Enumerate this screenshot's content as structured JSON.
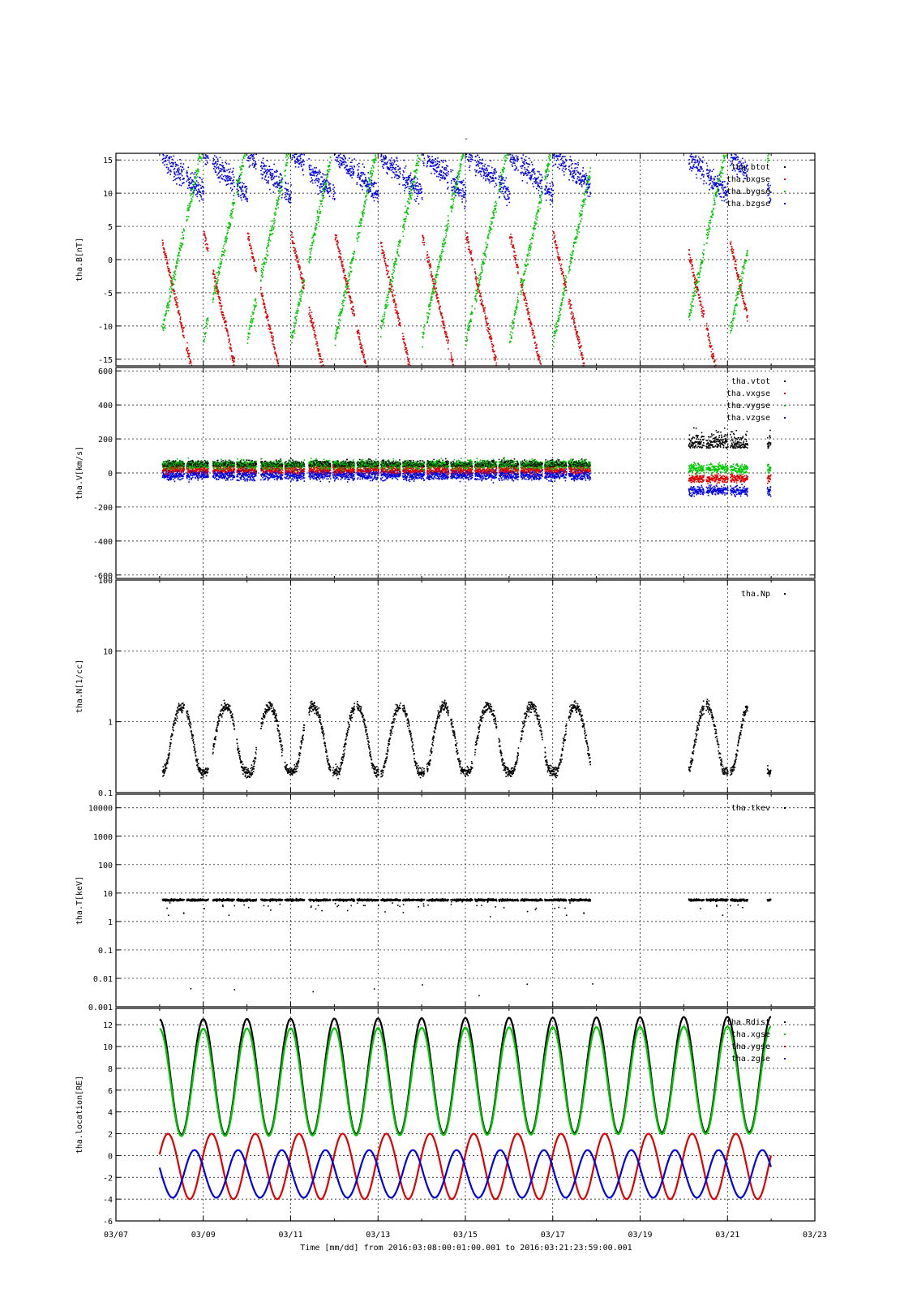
{
  "figure": {
    "title": "-",
    "xlabel": "Time [mm/dd]  from 2016:03:08:00:01:00.001  to  2016:03:21:23:59:00.001",
    "x_tick_labels": [
      "03/07",
      "03/09",
      "03/11",
      "03/13",
      "03/15",
      "03/17",
      "03/19",
      "03/21",
      "03/23"
    ]
  },
  "colors": {
    "black": "#000000",
    "red": "#e00000",
    "green": "#00c800",
    "blue": "#0000e0"
  },
  "chart_data": [
    {
      "type": "scatter",
      "title": "",
      "ylabel": "tha.B[nT]",
      "xlim": [
        "03/07",
        "03/23"
      ],
      "ylim": [
        -16,
        16
      ],
      "yscale": "linear",
      "y_ticks": [
        15,
        10,
        5,
        0,
        -5,
        -10,
        -15
      ],
      "y_tick_labels": [
        "15",
        "10",
        "5",
        "0",
        "-5",
        "-10",
        "-15"
      ],
      "legend_position": "top-right",
      "series": [
        {
          "name": "tha.btot",
          "color": "black"
        },
        {
          "name": "tha.bxgse",
          "color": "red"
        },
        {
          "name": "tha.bygse",
          "color": "green"
        },
        {
          "name": "tha.bzgse",
          "color": "blue"
        }
      ]
    },
    {
      "type": "scatter",
      "title": "",
      "ylabel": "tha.V[km/s]",
      "xlim": [
        "03/07",
        "03/23"
      ],
      "ylim": [
        -620,
        620
      ],
      "yscale": "linear",
      "y_ticks": [
        600,
        400,
        200,
        0,
        -200,
        -400,
        -600
      ],
      "y_tick_labels": [
        "600",
        "400",
        "200",
        "0",
        "-200",
        "-400",
        "-600"
      ],
      "legend_position": "top-right",
      "series": [
        {
          "name": "tha.vtot",
          "color": "black"
        },
        {
          "name": "tha.vxgse",
          "color": "red"
        },
        {
          "name": "tha.vygse",
          "color": "green"
        },
        {
          "name": "tha.vzgse",
          "color": "blue"
        }
      ]
    },
    {
      "type": "scatter",
      "title": "",
      "ylabel": "tha.N[1/cc]",
      "xlim": [
        "03/07",
        "03/23"
      ],
      "ylim": [
        0.1,
        100
      ],
      "yscale": "log",
      "y_ticks": [
        100,
        10,
        1,
        0.1
      ],
      "y_tick_labels": [
        "100",
        "10",
        "1",
        "0.1"
      ],
      "legend_position": "top-right",
      "series": [
        {
          "name": "tha.Np",
          "color": "black"
        }
      ]
    },
    {
      "type": "scatter",
      "title": "",
      "ylabel": "tha.T[keV]",
      "xlim": [
        "03/07",
        "03/23"
      ],
      "ylim": [
        0.001,
        30000
      ],
      "yscale": "log",
      "y_ticks": [
        10000,
        1000,
        100,
        10,
        1,
        0.1,
        0.01,
        0.001
      ],
      "y_tick_labels": [
        "10000",
        "1000",
        "100",
        "10",
        "1",
        "0.1",
        "0.01",
        "0.001"
      ],
      "legend_position": "top-right",
      "series": [
        {
          "name": "tha.tkev",
          "color": "black"
        }
      ]
    },
    {
      "type": "line",
      "title": "",
      "ylabel": "tha.location[RE]",
      "xlim": [
        "03/07",
        "03/23"
      ],
      "ylim": [
        -6,
        13.5
      ],
      "yscale": "linear",
      "y_ticks": [
        12,
        10,
        8,
        6,
        4,
        2,
        0,
        -2,
        -4,
        -6
      ],
      "y_tick_labels": [
        "12",
        "10",
        "8",
        "6",
        "4",
        "2",
        "0",
        "-2",
        "-4",
        "-6"
      ],
      "legend_position": "top-right",
      "orbit": {
        "period_days": 1.0,
        "apogee_RE": 12.3,
        "perigee_RE": 1.5,
        "start": "03/08",
        "end": "03/22"
      },
      "series": [
        {
          "name": "tha.Rdist",
          "color": "black"
        },
        {
          "name": "tha.xgse",
          "color": "green"
        },
        {
          "name": "tha.ygse",
          "color": "red"
        },
        {
          "name": "tha.zgse",
          "color": "blue"
        }
      ]
    }
  ]
}
